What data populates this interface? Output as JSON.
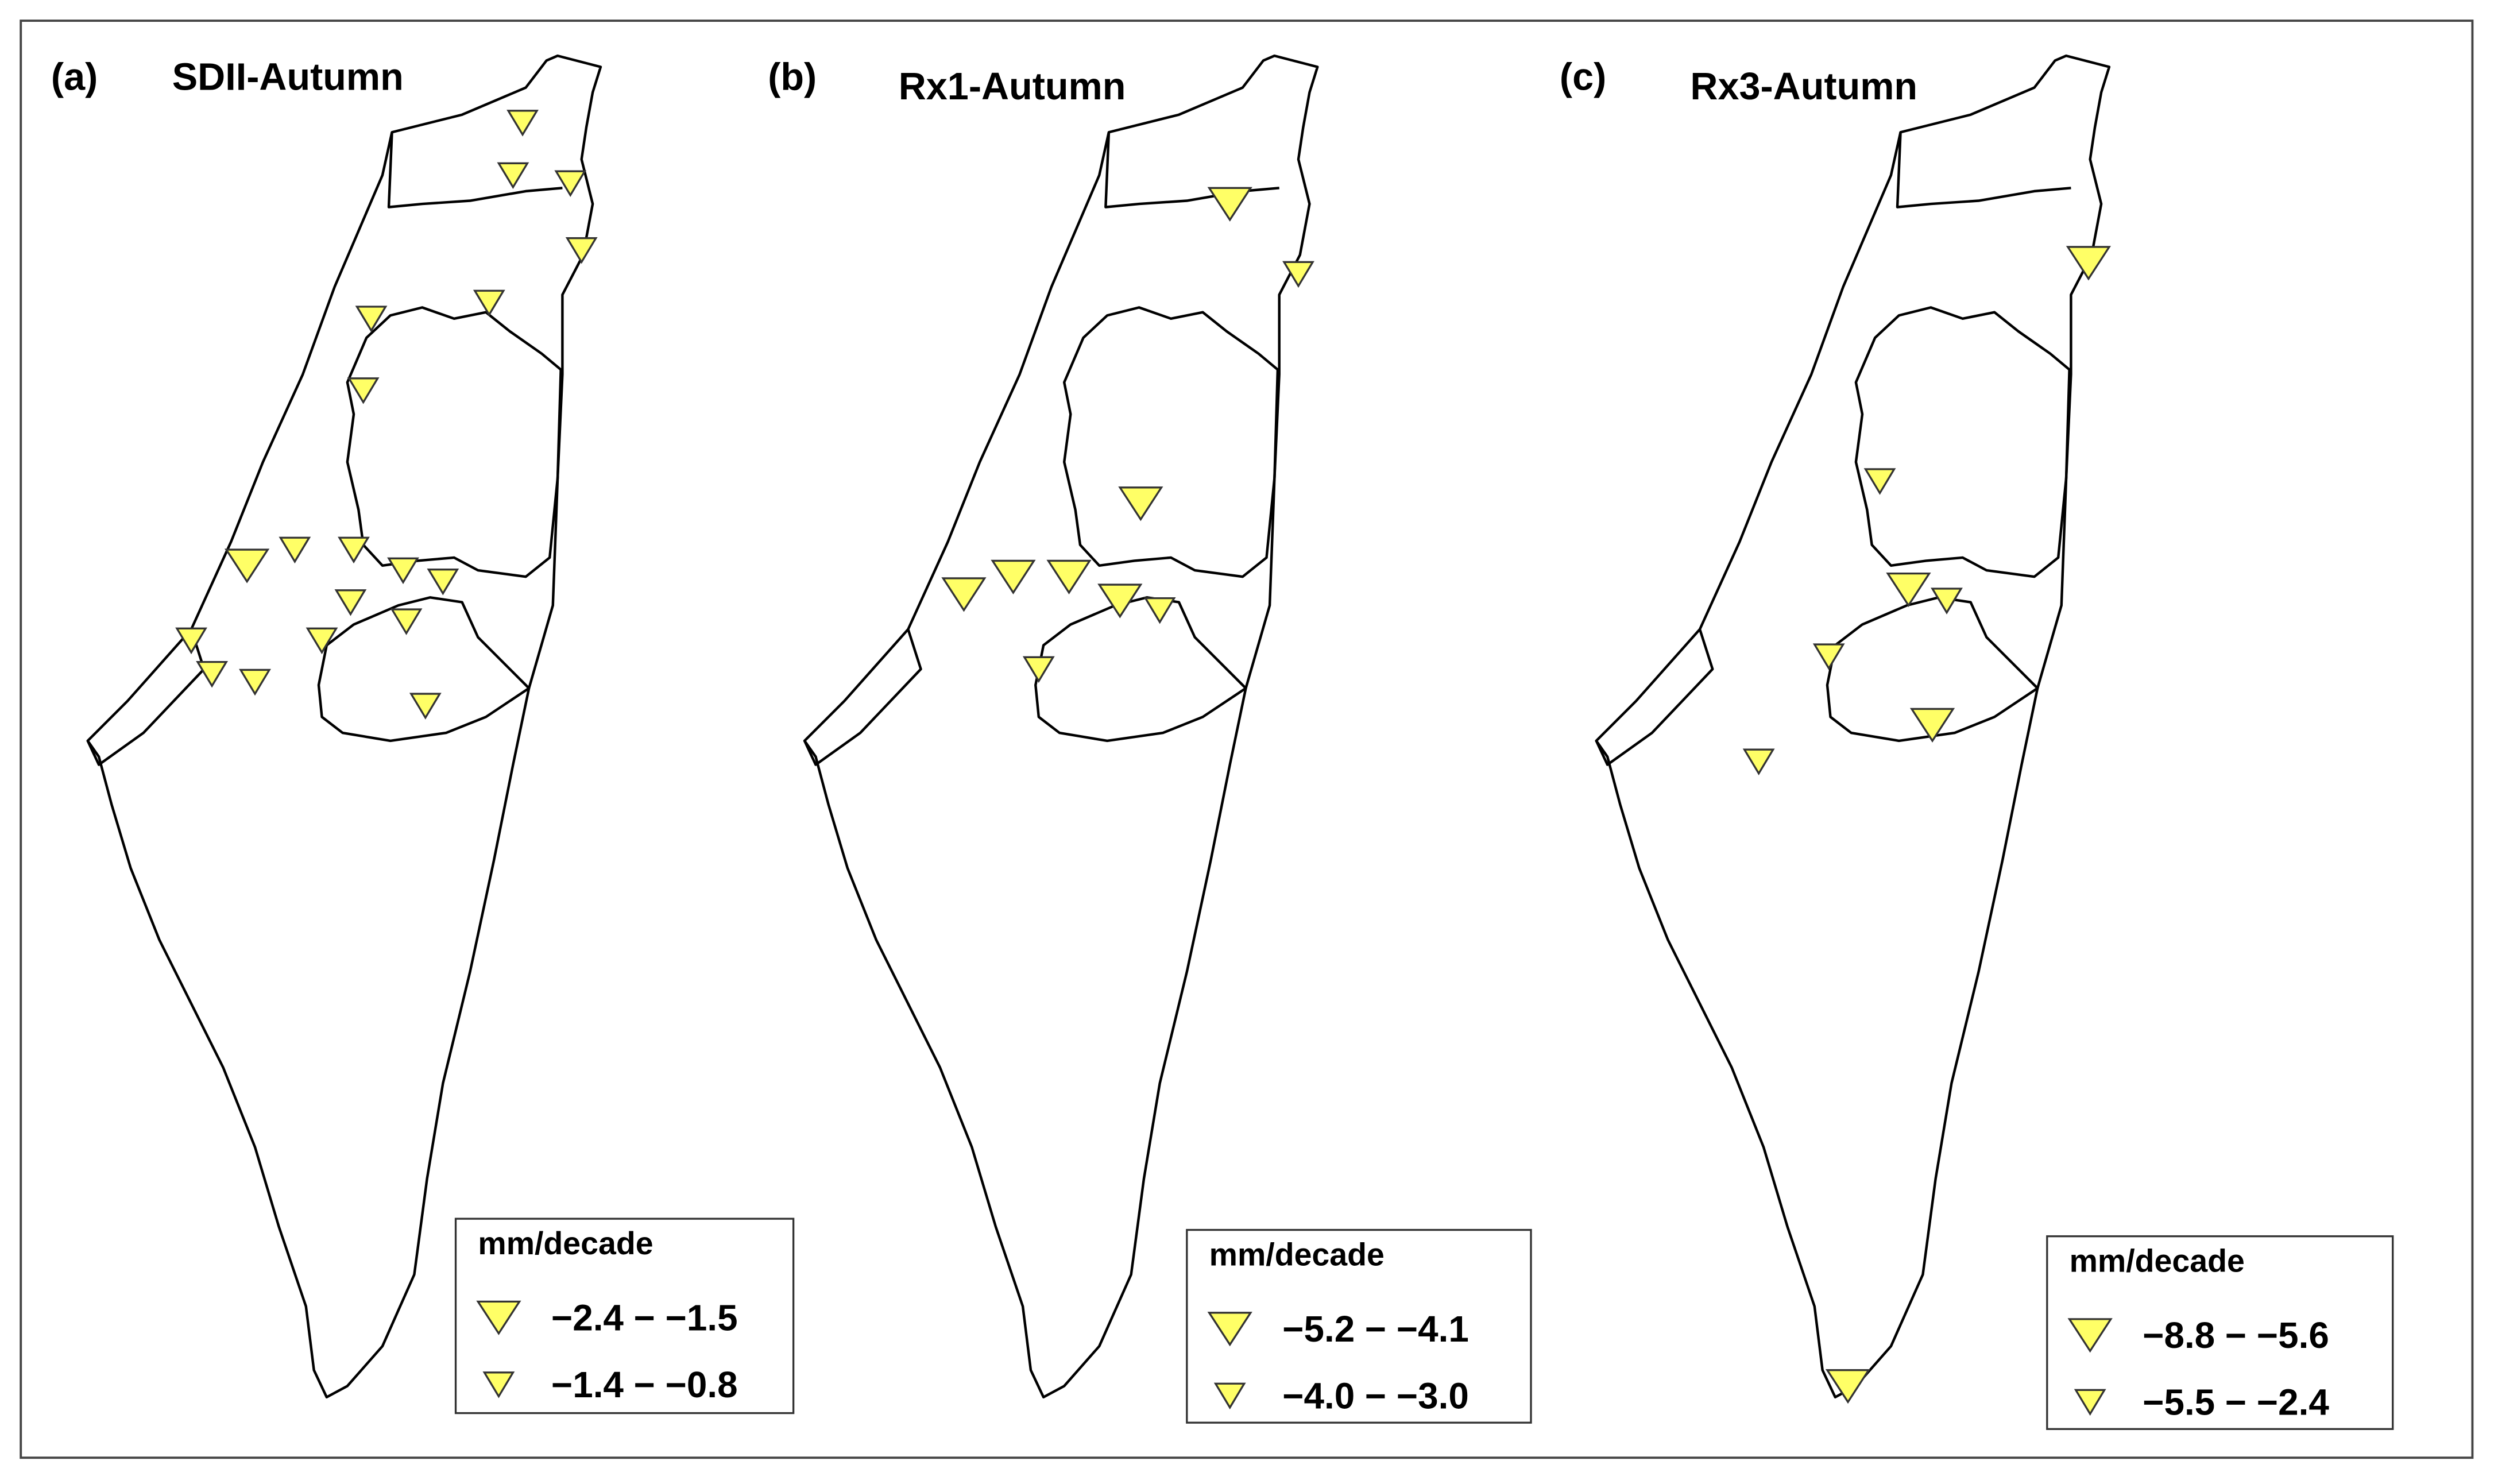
{
  "panels": [
    {
      "label": "(a)",
      "title": "SDII-Autumn",
      "legend": {
        "title": "mm/decade",
        "entries": [
          "−2.4 − −1.5",
          "−1.4 − −0.8"
        ]
      }
    },
    {
      "label": "(b)",
      "title": "Rx1-Autumn",
      "legend": {
        "title": "mm/decade",
        "entries": [
          "−5.2 − −4.1",
          "−4.0 − −3.0"
        ]
      }
    },
    {
      "label": "(c)",
      "title": "Rx3-Autumn",
      "legend": {
        "title": "mm/decade",
        "entries": [
          "−8.8 − −5.6",
          "−5.5 − −2.4"
        ]
      }
    }
  ]
}
